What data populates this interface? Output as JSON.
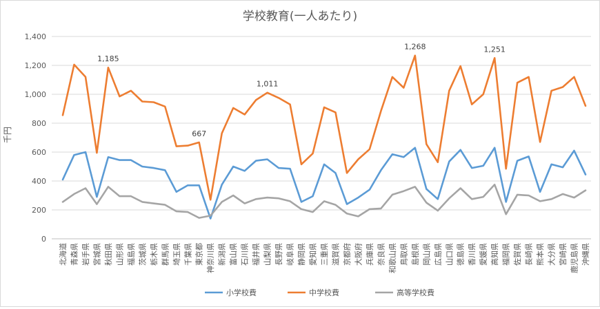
{
  "chart_data": {
    "type": "line",
    "title": "学校教育(一人あたり)",
    "xlabel": "",
    "ylabel": "千円",
    "ylim": [
      0,
      1400
    ],
    "yticks": [
      0,
      200,
      400,
      600,
      800,
      1000,
      1200,
      1400
    ],
    "ytick_labels": [
      "0",
      "200",
      "400",
      "600",
      "800",
      "1,000",
      "1,200",
      "1,400"
    ],
    "grid": true,
    "legend_position": "bottom",
    "categories": [
      "北海道",
      "青森県",
      "岩手県",
      "宮城県",
      "秋田県",
      "山形県",
      "福島県",
      "茨城県",
      "栃木県",
      "群馬県",
      "埼玉県",
      "千葉県",
      "東京都",
      "神奈川県",
      "新潟県",
      "富山県",
      "石川県",
      "福井県",
      "山梨県",
      "長野県",
      "岐阜県",
      "静岡県",
      "愛知県",
      "三重県",
      "滋賀県",
      "京都府",
      "大阪府",
      "兵庫県",
      "奈良県",
      "和歌山県",
      "鳥取県",
      "島根県",
      "岡山県",
      "広島県",
      "山口県",
      "徳島県",
      "香川県",
      "愛媛県",
      "高知県",
      "福岡県",
      "佐賀県",
      "長崎県",
      "熊本県",
      "大分県",
      "宮崎県",
      "鹿児島県",
      "沖縄県"
    ],
    "series": [
      {
        "name": "小学校費",
        "color": "#5b9bd5",
        "values": [
          410,
          580,
          600,
          290,
          565,
          545,
          545,
          500,
          490,
          475,
          325,
          370,
          370,
          140,
          375,
          500,
          470,
          540,
          550,
          490,
          485,
          255,
          295,
          515,
          455,
          240,
          285,
          340,
          475,
          585,
          565,
          630,
          345,
          275,
          535,
          615,
          490,
          505,
          630,
          255,
          540,
          570,
          325,
          515,
          495,
          610,
          445
        ]
      },
      {
        "name": "中学校費",
        "color": "#ed7d31",
        "values": [
          855,
          1205,
          1120,
          595,
          1185,
          985,
          1025,
          950,
          945,
          915,
          640,
          645,
          667,
          270,
          730,
          905,
          860,
          960,
          1011,
          975,
          930,
          515,
          590,
          910,
          875,
          455,
          550,
          620,
          885,
          1120,
          1045,
          1268,
          655,
          530,
          1025,
          1195,
          930,
          1000,
          1251,
          485,
          1080,
          1120,
          670,
          1025,
          1050,
          1120,
          920
        ]
      },
      {
        "name": "高等学校費",
        "color": "#a5a5a5",
        "values": [
          255,
          310,
          350,
          240,
          360,
          295,
          295,
          255,
          245,
          235,
          190,
          185,
          145,
          160,
          255,
          300,
          245,
          275,
          285,
          280,
          260,
          205,
          185,
          260,
          235,
          175,
          155,
          205,
          210,
          305,
          330,
          360,
          250,
          195,
          280,
          350,
          275,
          290,
          375,
          170,
          305,
          300,
          260,
          275,
          310,
          285,
          335
        ]
      }
    ],
    "data_labels": [
      {
        "category": "秋田県",
        "series": "中学校費",
        "text": "1,185"
      },
      {
        "category": "東京都",
        "series": "中学校費",
        "text": "667"
      },
      {
        "category": "山梨県",
        "series": "中学校費",
        "text": "1,011"
      },
      {
        "category": "島根県",
        "series": "中学校費",
        "text": "1,268"
      },
      {
        "category": "高知県",
        "series": "中学校費",
        "text": "1,251"
      }
    ]
  }
}
